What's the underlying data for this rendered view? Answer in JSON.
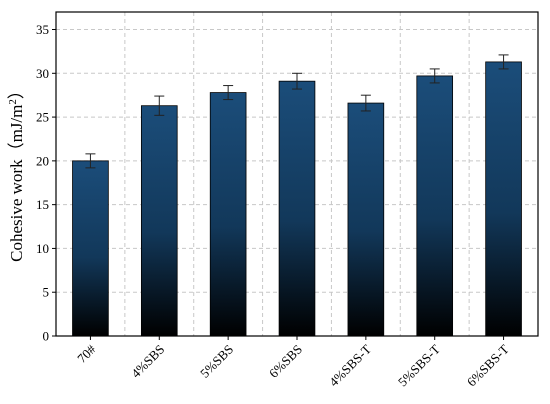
{
  "chart_data": {
    "type": "bar",
    "title": "",
    "xlabel": "",
    "ylabel": "Cohesive work（mJ/m",
    "ylabel_sup": "2",
    "ylabel_close": "）",
    "categories": [
      "70#",
      "4%SBS",
      "5%SBS",
      "6%SBS",
      "4%SBS-T",
      "5%SBS-T",
      "6%SBS-T"
    ],
    "values": [
      20.0,
      26.3,
      27.8,
      29.1,
      26.6,
      29.7,
      31.3
    ],
    "errors": [
      0.8,
      1.1,
      0.8,
      0.9,
      0.9,
      0.8,
      0.8
    ],
    "ylim": [
      0,
      37
    ],
    "yticks": [
      0,
      5,
      10,
      15,
      20,
      25,
      30,
      35
    ],
    "grid": "dashed horizontal and vertical",
    "bar_gradient": [
      "#1b4d7a",
      "#000000"
    ]
  }
}
